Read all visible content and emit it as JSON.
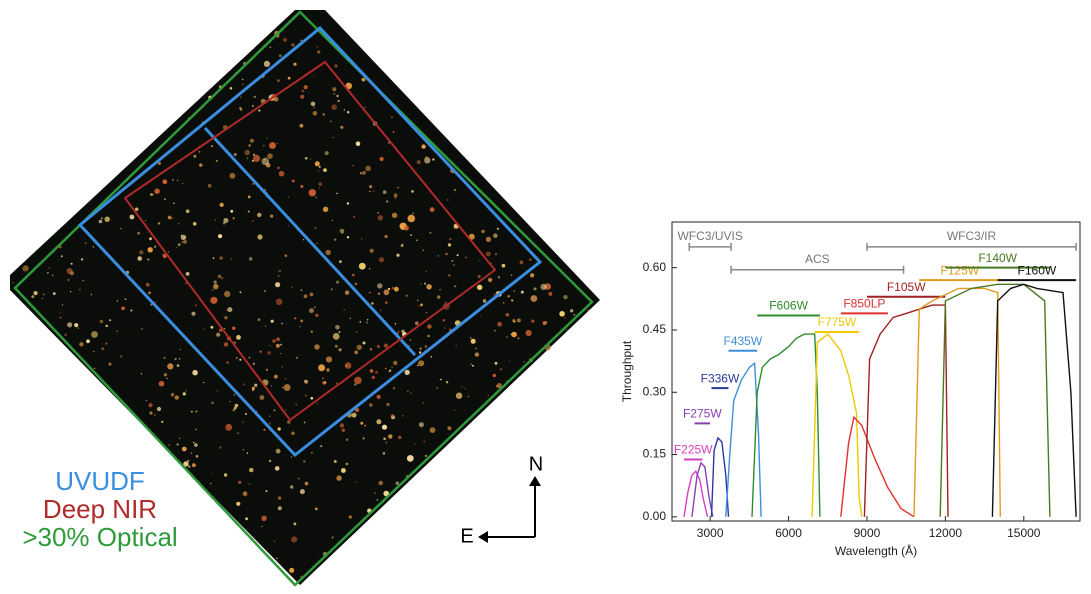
{
  "footprint_legend": [
    {
      "label": "UVUDF",
      "color": "#3a8ee0"
    },
    {
      "label": "Deep NIR",
      "color": "#b02a2a"
    },
    {
      "label": ">30% Optical",
      "color": "#2e9a3a"
    }
  ],
  "compass": {
    "north": "N",
    "east": "E"
  },
  "chart_data": {
    "type": "line",
    "xlabel": "Wavelength (Å)",
    "ylabel": "Throughput",
    "xlim": [
      1540,
      17150
    ],
    "ylim": [
      -0.01,
      0.71
    ],
    "xticks": [
      3000,
      6000,
      9000,
      12000,
      15000
    ],
    "yticks": [
      {
        "value": 0,
        "label": "0.00"
      },
      0.15,
      {
        "value": 0.3,
        "label": "0.30"
      },
      0.45,
      {
        "value": 0.6,
        "label": "0.60"
      }
    ],
    "series": [
      {
        "name": "F225W",
        "color": "#d63fbf",
        "x": [
          2000,
          2150,
          2300,
          2450,
          2600,
          2750,
          2900
        ],
        "values": [
          0,
          0.06,
          0.1,
          0.11,
          0.09,
          0.04,
          0
        ],
        "band": [
          2000,
          2700,
          0.138
        ]
      },
      {
        "name": "F275W",
        "color": "#8a3fb5",
        "x": [
          2300,
          2500,
          2650,
          2800,
          2950,
          3100
        ],
        "values": [
          0,
          0.1,
          0.13,
          0.12,
          0.05,
          0
        ],
        "band": [
          2400,
          3000,
          0.225
        ]
      },
      {
        "name": "F336W",
        "color": "#2b3a9e",
        "x": [
          3050,
          3150,
          3300,
          3450,
          3600,
          3700
        ],
        "values": [
          0,
          0.16,
          0.19,
          0.18,
          0.1,
          0
        ],
        "band": [
          3050,
          3700,
          0.31
        ]
      },
      {
        "name": "F435W",
        "color": "#3f8fd8",
        "x": [
          3600,
          3750,
          3900,
          4200,
          4500,
          4700,
          4850,
          4950
        ],
        "values": [
          0,
          0.15,
          0.28,
          0.33,
          0.36,
          0.37,
          0.2,
          0
        ],
        "band": [
          3700,
          4800,
          0.4
        ]
      },
      {
        "name": "F606W",
        "color": "#2e8b2e",
        "x": [
          4600,
          4800,
          5000,
          5300,
          5600,
          6000,
          6300,
          6600,
          7000,
          7100,
          7200
        ],
        "values": [
          0,
          0.3,
          0.36,
          0.38,
          0.39,
          0.41,
          0.43,
          0.44,
          0.44,
          0.3,
          0
        ],
        "band": [
          4800,
          7200,
          0.485
        ]
      },
      {
        "name": "F775W",
        "color": "#f0c800",
        "x": [
          6900,
          7100,
          7500,
          8000,
          8300,
          8600,
          8700,
          8800
        ],
        "values": [
          0,
          0.42,
          0.44,
          0.4,
          0.34,
          0.25,
          0.05,
          0
        ],
        "band": [
          7000,
          8700,
          0.445
        ]
      },
      {
        "name": "F850LP",
        "color": "#e03030",
        "x": [
          8000,
          8300,
          8500,
          8800,
          9300,
          9800,
          10300,
          10800
        ],
        "values": [
          0,
          0.18,
          0.24,
          0.22,
          0.14,
          0.07,
          0.02,
          0
        ],
        "band": [
          8000,
          9800,
          0.49
        ]
      },
      {
        "name": "F105W",
        "color": "#a02020",
        "x": [
          8900,
          9100,
          9500,
          10000,
          10500,
          11000,
          11500,
          12000,
          12100
        ],
        "values": [
          0,
          0.38,
          0.44,
          0.48,
          0.49,
          0.5,
          0.51,
          0.51,
          0
        ],
        "band": [
          9000,
          12000,
          0.53
        ]
      },
      {
        "name": "F125W",
        "color": "#e09a20",
        "x": [
          10800,
          11000,
          11500,
          12500,
          13500,
          14000,
          14100
        ],
        "values": [
          0,
          0.5,
          0.52,
          0.55,
          0.55,
          0.54,
          0
        ],
        "band": [
          11000,
          14100,
          0.57
        ]
      },
      {
        "name": "F140W",
        "color": "#4a7a20",
        "x": [
          11800,
          12000,
          13000,
          14000,
          15000,
          15800,
          16000
        ],
        "values": [
          0,
          0.52,
          0.55,
          0.56,
          0.56,
          0.52,
          0
        ],
        "band": [
          12000,
          16000,
          0.6
        ]
      },
      {
        "name": "F160W",
        "color": "#111111",
        "x": [
          13800,
          14000,
          14500,
          15000,
          15500,
          16500,
          16800,
          17000
        ],
        "values": [
          0,
          0.52,
          0.55,
          0.56,
          0.55,
          0.54,
          0.3,
          0
        ],
        "band": [
          14000,
          17000,
          0.57
        ]
      }
    ],
    "ranges": [
      {
        "label": "WFC3/UVIS",
        "start": 2200,
        "end": 3800,
        "level": 0.65
      },
      {
        "label": "ACS",
        "start": 3800,
        "end": 10400,
        "level": 0.595
      },
      {
        "label": "WFC3/IR",
        "start": 9000,
        "end": 17000,
        "level": 0.65
      }
    ]
  }
}
